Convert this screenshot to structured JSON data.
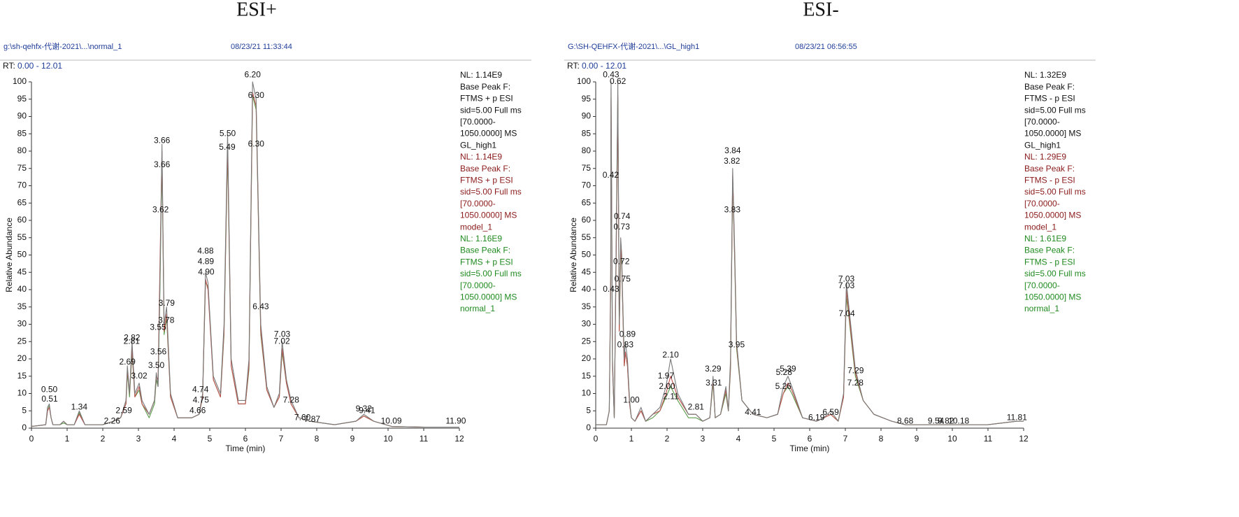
{
  "chart_data": [
    {
      "type": "line",
      "title": "ESI+",
      "file": "g:\\sh-qehfx-代谢-2021\\...\\normal_1",
      "date": "08/23/21 11:33:44",
      "rt": "RT:",
      "rt_range": "0.00 - 12.01",
      "xlabel": "Time (min)",
      "ylabel": "Relative Abundance",
      "xlim": [
        0,
        12
      ],
      "xticks": [
        0,
        1,
        2,
        3,
        4,
        5,
        6,
        7,
        8,
        9,
        10,
        11,
        12
      ],
      "ylim": [
        0,
        100
      ],
      "yticks": [
        0,
        5,
        10,
        15,
        20,
        25,
        30,
        35,
        40,
        45,
        50,
        55,
        60,
        65,
        70,
        75,
        80,
        85,
        90,
        95,
        100
      ],
      "x": [
        0,
        0.4,
        0.45,
        0.5,
        0.55,
        0.6,
        0.8,
        0.9,
        1.0,
        1.2,
        1.34,
        1.5,
        2.0,
        2.3,
        2.5,
        2.65,
        2.69,
        2.75,
        2.82,
        2.9,
        3.02,
        3.1,
        3.3,
        3.45,
        3.5,
        3.55,
        3.6,
        3.66,
        3.72,
        3.79,
        3.9,
        4.1,
        4.5,
        4.7,
        4.8,
        4.88,
        4.95,
        5.1,
        5.3,
        5.4,
        5.5,
        5.6,
        5.8,
        6.0,
        6.1,
        6.2,
        6.3,
        6.43,
        6.6,
        6.8,
        6.95,
        7.03,
        7.15,
        7.28,
        7.5,
        7.8,
        8.5,
        9.1,
        9.32,
        9.6,
        10.1,
        11,
        12
      ],
      "series": [
        {
          "name": "GL_high1",
          "nl": "NL: 1.14E9",
          "info": [
            "Base Peak F:",
            "FTMS + p ESI",
            "sid=5.00  Full ms",
            "[70.0000-",
            "1050.0000]  MS"
          ],
          "color": "#7a7a7a",
          "text_color": "#111111",
          "values": [
            0.5,
            1,
            6,
            7,
            3,
            1,
            1,
            2,
            1,
            1,
            5,
            1,
            1,
            2,
            3,
            8,
            18,
            10,
            25,
            10,
            13,
            8,
            4,
            8,
            16,
            12,
            40,
            82,
            30,
            35,
            10,
            3,
            3,
            4,
            10,
            45,
            42,
            15,
            10,
            30,
            85,
            20,
            8,
            8,
            20,
            100,
            95,
            30,
            12,
            6,
            10,
            25,
            14,
            8,
            3,
            2,
            1,
            2,
            4,
            2,
            0.5,
            0.3,
            0.3
          ]
        },
        {
          "name": "model_1",
          "nl": "NL: 1.14E9",
          "info": [
            "Base Peak F:",
            "FTMS + p ESI",
            "sid=5.00  Full ms",
            "[70.0000-",
            "1050.0000]  MS"
          ],
          "color": "#c0504d",
          "text_color": "#8b1a1a",
          "values": [
            0.5,
            1,
            5,
            6,
            3,
            1,
            1,
            2,
            1,
            1,
            4,
            1,
            1,
            2,
            3,
            7,
            17,
            10,
            23,
            9,
            12,
            7,
            4,
            8,
            15,
            14,
            45,
            80,
            28,
            33,
            9,
            3,
            3,
            4,
            9,
            43,
            40,
            14,
            9,
            28,
            82,
            18,
            7,
            7,
            18,
            97,
            93,
            28,
            11,
            6,
            9,
            23,
            13,
            7,
            3,
            2,
            1,
            2,
            3.5,
            2,
            0.5,
            0.3,
            0.3
          ]
        },
        {
          "name": "normal_1",
          "nl": "NL: 1.16E9",
          "info": [
            "Base Peak F:",
            "FTMS + p ESI",
            "sid=5.00  Full ms",
            "[70.0000-",
            "1050.0000]  MS"
          ],
          "color": "#5a9a4a",
          "text_color": "#1f8a1f",
          "values": [
            0.5,
            1,
            5,
            6.5,
            3,
            1,
            1,
            1.5,
            1,
            1,
            4.5,
            1,
            1,
            2,
            3,
            7,
            16,
            9,
            22,
            9,
            11,
            7,
            3,
            7,
            14,
            12,
            38,
            78,
            27,
            32,
            9,
            3,
            3,
            4,
            9,
            42,
            41,
            14,
            9,
            27,
            80,
            18,
            7,
            7,
            17,
            96,
            92,
            27,
            11,
            6,
            9,
            22,
            13,
            7,
            3,
            2,
            1,
            2,
            3.5,
            2,
            0.5,
            0.3,
            0.3
          ]
        }
      ],
      "peak_labels": [
        {
          "x": 0.51,
          "label": "0.51",
          "y": 8.3
        },
        {
          "x": 0.5,
          "label": "0.50",
          "y": 11
        },
        {
          "x": 1.34,
          "label": "1.34",
          "y": 6
        },
        {
          "x": 2.26,
          "label": "2.26",
          "y": 2
        },
        {
          "x": 2.59,
          "label": "2.59",
          "y": 5
        },
        {
          "x": 2.69,
          "label": "2.69",
          "y": 19
        },
        {
          "x": 2.81,
          "label": "2.81",
          "y": 25
        },
        {
          "x": 2.82,
          "label": "2.82",
          "y": 26
        },
        {
          "x": 3.02,
          "label": "3.02",
          "y": 15
        },
        {
          "x": 3.5,
          "label": "3.50",
          "y": 18
        },
        {
          "x": 3.55,
          "label": "3.55",
          "y": 29
        },
        {
          "x": 3.56,
          "label": "3.56",
          "y": 22
        },
        {
          "x": 3.62,
          "label": "3.62",
          "y": 63
        },
        {
          "x": 3.66,
          "label": "3.66",
          "y": 83
        },
        {
          "x": 3.66,
          "label": "3.66",
          "y": 76
        },
        {
          "x": 3.79,
          "label": "3.79",
          "y": 36
        },
        {
          "x": 3.78,
          "label": "3.78",
          "y": 31
        },
        {
          "x": 4.74,
          "label": "4.74",
          "y": 11
        },
        {
          "x": 4.75,
          "label": "4.75",
          "y": 8
        },
        {
          "x": 4.66,
          "label": "4.66",
          "y": 5
        },
        {
          "x": 4.88,
          "label": "4.88",
          "y": 51
        },
        {
          "x": 4.89,
          "label": "4.89",
          "y": 48
        },
        {
          "x": 4.9,
          "label": "4.90",
          "y": 45
        },
        {
          "x": 5.5,
          "label": "5.50",
          "y": 85
        },
        {
          "x": 5.49,
          "label": "5.49",
          "y": 81
        },
        {
          "x": 6.2,
          "label": "6.20",
          "y": 102
        },
        {
          "x": 6.3,
          "label": "6.30",
          "y": 96
        },
        {
          "x": 6.3,
          "label": "6.30",
          "y": 82
        },
        {
          "x": 6.43,
          "label": "6.43",
          "y": 35
        },
        {
          "x": 7.03,
          "label": "7.03",
          "y": 27
        },
        {
          "x": 7.02,
          "label": "7.02",
          "y": 25
        },
        {
          "x": 7.28,
          "label": "7.28",
          "y": 8
        },
        {
          "x": 7.6,
          "label": "7.60",
          "y": 3
        },
        {
          "x": 7.87,
          "label": "7.87",
          "y": 2.5
        },
        {
          "x": 9.32,
          "label": "9.32",
          "y": 5.5
        },
        {
          "x": 9.41,
          "label": "9.41",
          "y": 5
        },
        {
          "x": 10.09,
          "label": "10.09",
          "y": 2
        },
        {
          "x": 11.9,
          "label": "11.90",
          "y": 2
        }
      ]
    },
    {
      "type": "line",
      "title": "ESI-",
      "file": "G:\\SH-QEHFX-代谢-2021\\...\\GL_high1",
      "date": "08/23/21 06:56:55",
      "rt": "RT:",
      "rt_range": "0.00 - 12.01",
      "xlabel": "Time (min)",
      "ylabel": "Relative Abundance",
      "xlim": [
        0,
        12
      ],
      "xticks": [
        0,
        1,
        2,
        3,
        4,
        5,
        6,
        7,
        8,
        9,
        10,
        11,
        12
      ],
      "ylim": [
        0,
        100
      ],
      "yticks": [
        0,
        5,
        10,
        15,
        20,
        25,
        30,
        35,
        40,
        45,
        50,
        55,
        60,
        65,
        70,
        75,
        80,
        85,
        90,
        95,
        100
      ],
      "x": [
        0,
        0.3,
        0.38,
        0.42,
        0.43,
        0.47,
        0.52,
        0.58,
        0.62,
        0.66,
        0.7,
        0.73,
        0.75,
        0.8,
        0.83,
        0.89,
        0.95,
        1.0,
        1.1,
        1.27,
        1.4,
        1.6,
        1.8,
        1.97,
        2.1,
        2.3,
        2.6,
        2.81,
        3.0,
        3.2,
        3.29,
        3.35,
        3.5,
        3.65,
        3.72,
        3.78,
        3.84,
        3.9,
        3.95,
        4.1,
        4.41,
        4.8,
        5.1,
        5.26,
        5.39,
        5.5,
        5.8,
        6.19,
        6.4,
        6.59,
        6.8,
        6.95,
        7.03,
        7.1,
        7.28,
        7.5,
        7.8,
        8.3,
        8.68,
        9.54,
        9.82,
        10.18,
        11.0,
        11.81,
        12
      ],
      "series": [
        {
          "name": "GL_high1",
          "nl": "NL: 1.32E9",
          "info": [
            "Base Peak F:",
            "FTMS - p ESI",
            "sid=5.00  Full ms",
            "[70.0000-",
            "1050.0000]  MS"
          ],
          "color": "#7a7a7a",
          "text_color": "#111111",
          "values": [
            1,
            1,
            5,
            40,
            100,
            20,
            3,
            60,
            100,
            30,
            55,
            50,
            40,
            20,
            25,
            20,
            8,
            3,
            2,
            6,
            2,
            4,
            6,
            12,
            20,
            10,
            4,
            4,
            2,
            3,
            15,
            3,
            4,
            12,
            5,
            20,
            75,
            50,
            25,
            8,
            4,
            3,
            4,
            12,
            15,
            12,
            3,
            2,
            3,
            5,
            2,
            10,
            42,
            35,
            17,
            8,
            4,
            2,
            1,
            1,
            1,
            1,
            1,
            2,
            2
          ]
        },
        {
          "name": "model_1",
          "nl": "NL: 1.29E9",
          "info": [
            "Base Peak F:",
            "FTMS - p ESI",
            "sid=5.00  Full ms",
            "[70.0000-",
            "1050.0000]  MS"
          ],
          "color": "#c0504d",
          "text_color": "#8b1a1a",
          "values": [
            1,
            1,
            5,
            45,
            98,
            18,
            3,
            55,
            96,
            28,
            52,
            48,
            38,
            18,
            22,
            18,
            7,
            3,
            2,
            5,
            2,
            4,
            5,
            10,
            15,
            9,
            4,
            4,
            2,
            3,
            14,
            3,
            4,
            11,
            5,
            18,
            73,
            48,
            24,
            8,
            4,
            3,
            4,
            10,
            13,
            11,
            3,
            2,
            3,
            4,
            2,
            9,
            40,
            33,
            16,
            8,
            4,
            2,
            1,
            1,
            1,
            1,
            1,
            2,
            2
          ]
        },
        {
          "name": "normal_1",
          "nl": "NL: 1.61E9",
          "info": [
            "Base Peak F:",
            "FTMS - p ESI",
            "sid=5.00  Full ms",
            "[70.0000-",
            "1050.0000]  MS"
          ],
          "color": "#5a9a4a",
          "text_color": "#1f8a1f",
          "values": [
            1,
            1,
            5,
            42,
            95,
            18,
            3,
            58,
            95,
            28,
            50,
            47,
            38,
            18,
            22,
            18,
            7,
            3,
            2,
            5,
            2,
            3,
            5,
            9,
            12,
            8,
            3,
            3,
            2,
            3,
            13,
            3,
            4,
            10,
            5,
            17,
            72,
            47,
            23,
            8,
            4,
            3,
            4,
            10,
            12,
            10,
            3,
            2,
            3,
            4,
            2,
            9,
            38,
            32,
            15,
            8,
            4,
            2,
            1,
            1,
            1,
            1,
            1,
            2,
            2
          ]
        }
      ],
      "peak_labels": [
        {
          "x": 0.43,
          "label": "0.43",
          "y": 102
        },
        {
          "x": 0.62,
          "label": "0.62",
          "y": 100
        },
        {
          "x": 0.42,
          "label": "0.42",
          "y": 73
        },
        {
          "x": 0.74,
          "label": "0.74",
          "y": 61
        },
        {
          "x": 0.73,
          "label": "0.73",
          "y": 58
        },
        {
          "x": 0.72,
          "label": "0.72",
          "y": 48
        },
        {
          "x": 0.75,
          "label": "0.75",
          "y": 43
        },
        {
          "x": 0.43,
          "label": "0.43",
          "y": 40
        },
        {
          "x": 0.89,
          "label": "0.89",
          "y": 27
        },
        {
          "x": 0.83,
          "label": "0.83",
          "y": 24
        },
        {
          "x": 1.0,
          "label": "1.00",
          "y": 8
        },
        {
          "x": 1.97,
          "label": "1.97",
          "y": 15
        },
        {
          "x": 2.1,
          "label": "2.10",
          "y": 21
        },
        {
          "x": 2.0,
          "label": "2.00",
          "y": 12
        },
        {
          "x": 2.11,
          "label": "2.11",
          "y": 9
        },
        {
          "x": 2.81,
          "label": "2.81",
          "y": 6
        },
        {
          "x": 3.29,
          "label": "3.29",
          "y": 17
        },
        {
          "x": 3.31,
          "label": "3.31",
          "y": 13
        },
        {
          "x": 3.84,
          "label": "3.84",
          "y": 80
        },
        {
          "x": 3.82,
          "label": "3.82",
          "y": 77
        },
        {
          "x": 3.83,
          "label": "3.83",
          "y": 63
        },
        {
          "x": 3.95,
          "label": "3.95",
          "y": 24
        },
        {
          "x": 4.41,
          "label": "4.41",
          "y": 4.5
        },
        {
          "x": 5.28,
          "label": "5.28",
          "y": 16
        },
        {
          "x": 5.39,
          "label": "5.39",
          "y": 17
        },
        {
          "x": 5.26,
          "label": "5.26",
          "y": 12
        },
        {
          "x": 6.19,
          "label": "6.19",
          "y": 3
        },
        {
          "x": 6.59,
          "label": "6.59",
          "y": 4.5
        },
        {
          "x": 7.03,
          "label": "7.03",
          "y": 43
        },
        {
          "x": 7.03,
          "label": "7.03",
          "y": 41
        },
        {
          "x": 7.04,
          "label": "7.04",
          "y": 33
        },
        {
          "x": 7.29,
          "label": "7.29",
          "y": 16.5
        },
        {
          "x": 7.28,
          "label": "7.28",
          "y": 13
        },
        {
          "x": 8.68,
          "label": "8.68",
          "y": 2
        },
        {
          "x": 9.54,
          "label": "9.54",
          "y": 2
        },
        {
          "x": 9.82,
          "label": "9.82",
          "y": 2
        },
        {
          "x": 10.18,
          "label": "10.18",
          "y": 2
        },
        {
          "x": 11.81,
          "label": "11.81",
          "y": 3
        }
      ]
    }
  ]
}
